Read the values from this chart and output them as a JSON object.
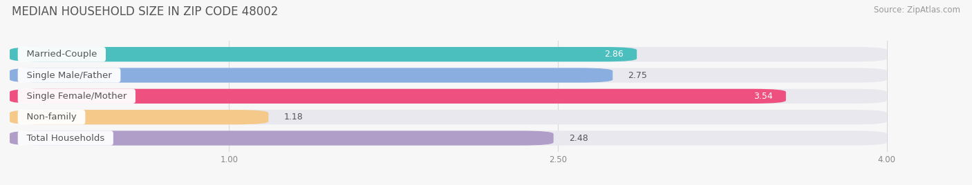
{
  "title": "MEDIAN HOUSEHOLD SIZE IN ZIP CODE 48002",
  "source": "Source: ZipAtlas.com",
  "categories": [
    "Married-Couple",
    "Single Male/Father",
    "Single Female/Mother",
    "Non-family",
    "Total Households"
  ],
  "values": [
    2.86,
    2.75,
    3.54,
    1.18,
    2.48
  ],
  "bar_colors": [
    "#4BBFBE",
    "#8AAEE0",
    "#EE5080",
    "#F5C98A",
    "#B09DC8"
  ],
  "value_colors": [
    "white",
    "#666666",
    "white",
    "#666666",
    "#666666"
  ],
  "value_inside": [
    true,
    false,
    true,
    false,
    false
  ],
  "xlim": [
    0,
    4.3
  ],
  "xmin": 0,
  "xmax": 4.0,
  "xticks": [
    1.0,
    2.5,
    4.0
  ],
  "bar_bg_color": "#e8e8ee",
  "background_color": "#f7f7f7",
  "title_fontsize": 12,
  "source_fontsize": 8.5,
  "label_fontsize": 9.5,
  "value_fontsize": 9
}
